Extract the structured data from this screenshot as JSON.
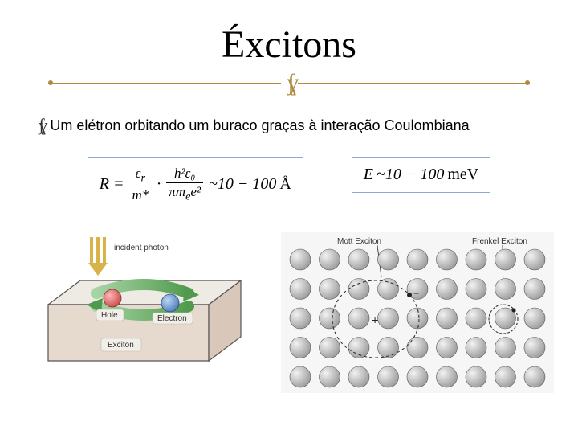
{
  "title": "Éxcitons",
  "bullet": "Um elétron orbitando um buraco graças à interação Coulombiana",
  "formula1": {
    "lhs": "R =",
    "frac1_num": "ε",
    "frac1_num_sub": "r",
    "frac1_den": "m*",
    "frac2_num": "h²ε₀",
    "frac2_den": "πm",
    "frac2_den_sub": "e",
    "frac2_den_tail": "e²",
    "tail": "~10 − 100",
    "unit": "Å"
  },
  "formula2": {
    "lhs": "E",
    "tail": "~10 − 100",
    "unit": "meV"
  },
  "exciton": {
    "incident_label": "incident photon",
    "hole_label": "Hole",
    "electron_label": "Electron",
    "exciton_label": "Exciton",
    "colors": {
      "slab_top": "#eeeae4",
      "slab_front": "#e6d9cd",
      "slab_side": "#d9c8b9",
      "hole": "#d94c4c",
      "electron": "#5b8fd6",
      "arrow": "#6fb36c",
      "photon": "#d9b24a"
    }
  },
  "lattice": {
    "mott_label": "Mott Exciton",
    "frenkel_label": "Frenkel Exciton",
    "rows": 5,
    "cols": 9,
    "atom_radius": 13,
    "colors": {
      "atom_light": "#eeeeee",
      "atom_dark": "#999999",
      "atom_stroke": "#666666",
      "bg": "#f6f6f6",
      "orbit": "#333333"
    }
  },
  "palette": {
    "divider": "#b08a3e",
    "formula_border": "#8fa8d6"
  }
}
